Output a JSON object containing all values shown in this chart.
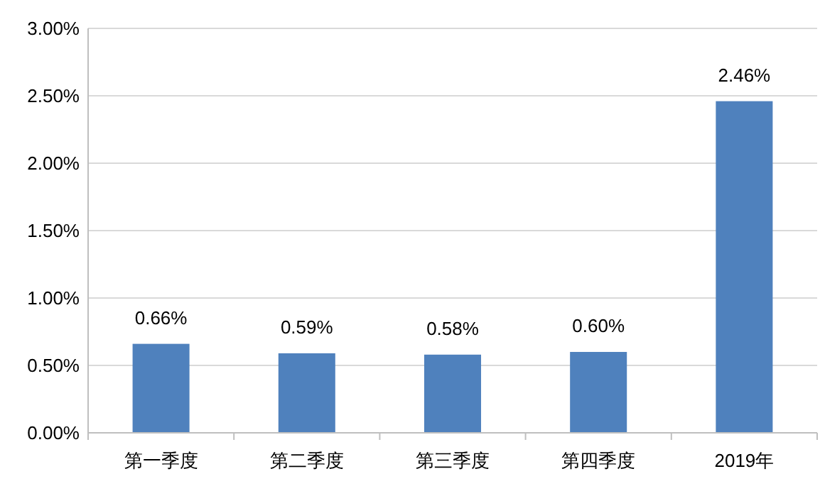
{
  "chart_data": {
    "type": "bar",
    "categories": [
      "第一季度",
      "第二季度",
      "第三季度",
      "第四季度",
      "2019年"
    ],
    "values": [
      0.66,
      0.59,
      0.58,
      0.6,
      2.46
    ],
    "value_labels": [
      "0.66%",
      "0.59%",
      "0.58%",
      "0.60%",
      "2.46%"
    ],
    "color": "#4f81bd",
    "ylim": [
      0,
      3
    ],
    "yticks": [
      {
        "value": 0,
        "label": "0.00%"
      },
      {
        "value": 0.5,
        "label": "0.50%"
      },
      {
        "value": 1,
        "label": "1.00%"
      },
      {
        "value": 1.5,
        "label": "1.50%"
      },
      {
        "value": 2,
        "label": "2.00%"
      },
      {
        "value": 2.5,
        "label": "2.50%"
      },
      {
        "value": 3,
        "label": "3.00%"
      }
    ],
    "grid": "y"
  }
}
